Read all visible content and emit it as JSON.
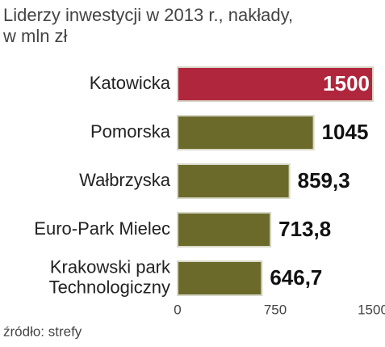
{
  "chart_data": {
    "type": "hbar",
    "title": "Liderzy inwestycji w 2013 r., nakłady,\nw mln zł",
    "categories": [
      "Katowicka",
      "Pomorska",
      "Wałbrzyska",
      "Euro-Park Mielec",
      "Krakowski park\nTechnologiczny"
    ],
    "values": [
      1500,
      1045,
      859.3,
      713.8,
      646.7
    ],
    "value_labels": [
      "1500",
      "1045",
      "859,3",
      "713,8",
      "646,7"
    ],
    "colors": [
      "#b0263d",
      "#6b6a2b",
      "#6b6a2b",
      "#6b6a2b",
      "#6b6a2b"
    ],
    "xlim": [
      0,
      1500
    ],
    "xticks": [
      0,
      750,
      1500
    ],
    "source": "źródło: strefy"
  }
}
